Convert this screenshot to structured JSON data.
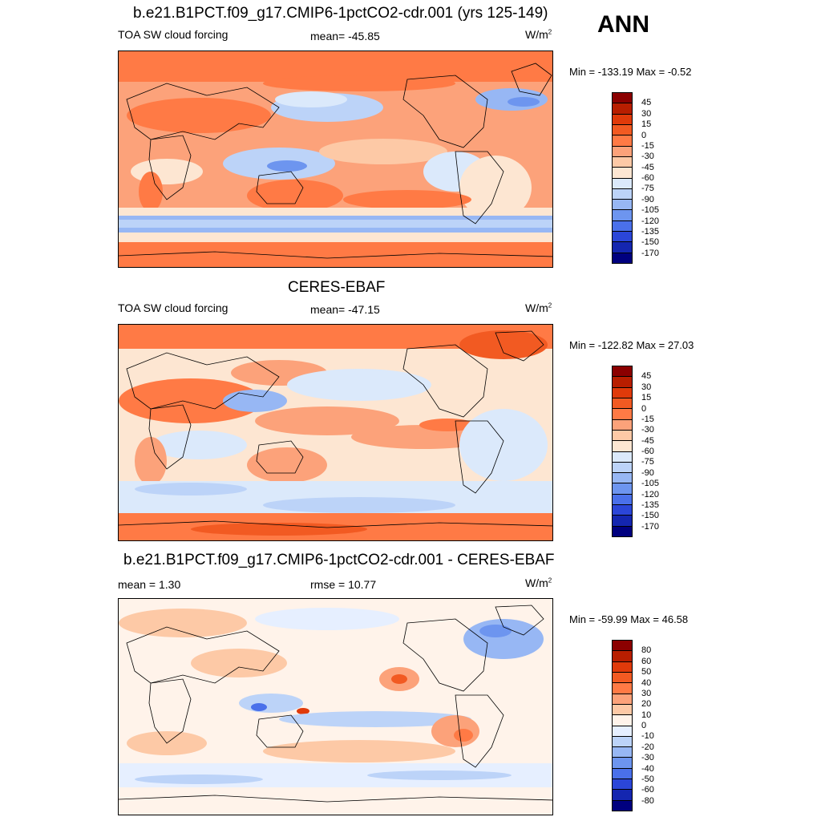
{
  "season": "ANN",
  "panels": [
    {
      "title": "b.e21.B1PCT.f09_g17.CMIP6-1pctCO2-cdr.001 (yrs 125-149)",
      "left_label": "TOA SW cloud forcing",
      "center_label": "mean= -45.85",
      "units": "W/m",
      "units_sup": "2",
      "minmax": "Min = -133.19 Max =  -0.52",
      "levels": [
        "45",
        "30",
        "15",
        "0",
        "-15",
        "-30",
        "-45",
        "-60",
        "-75",
        "-90",
        "-105",
        "-120",
        "-135",
        "-150",
        "-170"
      ],
      "colors": [
        "#8b0000",
        "#b81e00",
        "#e03a0a",
        "#f25a22",
        "#ff7a45",
        "#fca27a",
        "#fdc9a6",
        "#fde6d2",
        "#dbe9fb",
        "#bcd3f8",
        "#97b7f4",
        "#6d95ef",
        "#4a70ea",
        "#2b46d8",
        "#1426b0",
        "#00007f"
      ]
    },
    {
      "title": "CERES-EBAF",
      "left_label": "TOA SW cloud forcing",
      "center_label": "mean= -47.15",
      "units": "W/m",
      "units_sup": "2",
      "minmax": "Min = -122.82 Max =  27.03",
      "levels": [
        "45",
        "30",
        "15",
        "0",
        "-15",
        "-30",
        "-45",
        "-60",
        "-75",
        "-90",
        "-105",
        "-120",
        "-135",
        "-150",
        "-170"
      ],
      "colors": [
        "#8b0000",
        "#b81e00",
        "#e03a0a",
        "#f25a22",
        "#ff7a45",
        "#fca27a",
        "#fdc9a6",
        "#fde6d2",
        "#dbe9fb",
        "#bcd3f8",
        "#97b7f4",
        "#6d95ef",
        "#4a70ea",
        "#2b46d8",
        "#1426b0",
        "#00007f"
      ]
    },
    {
      "title": "b.e21.B1PCT.f09_g17.CMIP6-1pctCO2-cdr.001 - CERES-EBAF",
      "left_label": "mean =   1.30",
      "center_label": "rmse =  10.77",
      "units": "W/m",
      "units_sup": "2",
      "minmax": "Min = -59.99 Max =  46.58",
      "levels": [
        "80",
        "60",
        "50",
        "40",
        "30",
        "20",
        "10",
        "0",
        "-10",
        "-20",
        "-30",
        "-40",
        "-50",
        "-60",
        "-80"
      ],
      "colors": [
        "#8b0000",
        "#b81e00",
        "#e03a0a",
        "#f25a22",
        "#ff7a45",
        "#fca27a",
        "#fdc9a6",
        "#fff3ea",
        "#e6efff",
        "#bcd3f8",
        "#97b7f4",
        "#6d95ef",
        "#4a70ea",
        "#2b46d8",
        "#1426b0",
        "#00007f"
      ]
    }
  ]
}
